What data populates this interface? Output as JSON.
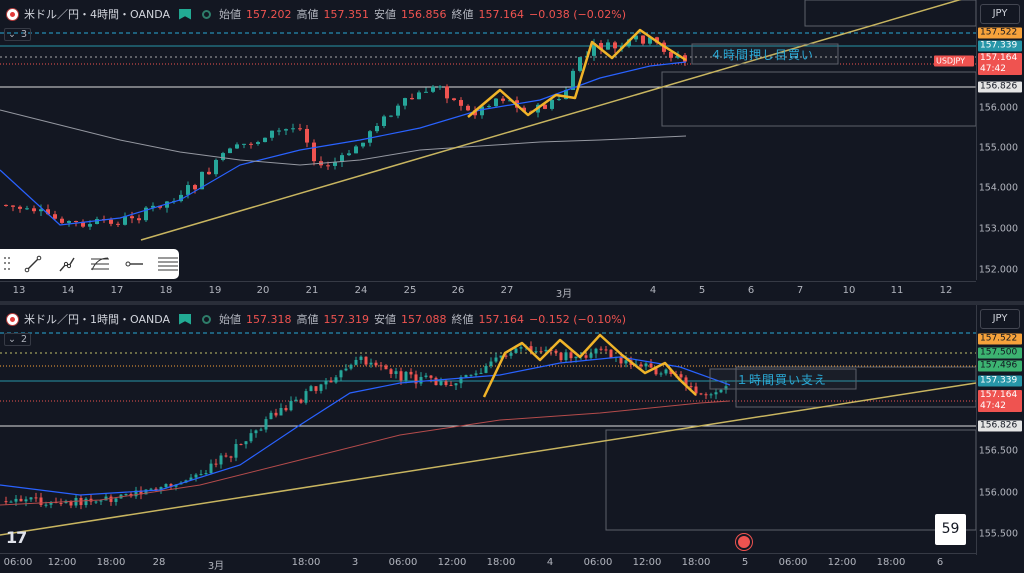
{
  "top": {
    "title": "米ドル／円・4時間・OANDA",
    "o_label": "始値",
    "o": "157.202",
    "h_label": "高値",
    "h": "157.351",
    "l_label": "安値",
    "l": "156.856",
    "c_label": "終値",
    "c": "157.164",
    "chg": "−0.038 (−0.02%)",
    "indicator_count": "3",
    "currency": "JPY",
    "annotation": "４時間押し目買い",
    "y_ticks": [
      "156.000",
      "155.000",
      "154.000",
      "153.000",
      "152.000"
    ],
    "x_ticks": [
      "13",
      "14",
      "17",
      "18",
      "19",
      "20",
      "21",
      "24",
      "25",
      "26",
      "27",
      "3月",
      "4",
      "5",
      "6",
      "7",
      "10",
      "11",
      "12"
    ],
    "tags": {
      "t1": "157.522",
      "t2": "157.339",
      "t3": "157.164",
      "t3b": "47:42",
      "sym": "USDJPY",
      "t4": "156.826"
    }
  },
  "bottom": {
    "title": "米ドル／円・1時間・OANDA",
    "o_label": "始値",
    "o": "157.318",
    "h_label": "高値",
    "h": "157.319",
    "l_label": "安値",
    "l": "157.088",
    "c_label": "終値",
    "c": "157.164",
    "chg": "−0.152 (−0.10%)",
    "indicator_count": "2",
    "currency": "JPY",
    "annotation": "１時間買い支え",
    "y_ticks": [
      "156.500",
      "156.000",
      "155.500"
    ],
    "x_ticks": [
      "06:00",
      "12:00",
      "18:00",
      "28",
      "3月",
      "18:00",
      "3",
      "06:00",
      "12:00",
      "18:00",
      "4",
      "06:00",
      "12:00",
      "18:00",
      "5",
      "06:00",
      "12:00",
      "18:00",
      "6"
    ],
    "tags": {
      "t1": "157.522",
      "t2": "157.500",
      "t3": "157.496",
      "t4": "157.339",
      "t5": "157.164",
      "t5b": "47:42",
      "t6": "156.826"
    },
    "countdown": "59"
  },
  "toolbar": {
    "items": [
      "trend-line",
      "ray",
      "fib-retracement",
      "horizontal-ray",
      "parallel-channel"
    ]
  },
  "logo": "17",
  "colors": {
    "bg": "#131722",
    "up": "#26a69a",
    "down": "#ef5350",
    "zigzag": "#f0b429",
    "trend": "#c8b560",
    "ma_fast": "#2962ff",
    "annotation": "#2aa9d6"
  }
}
